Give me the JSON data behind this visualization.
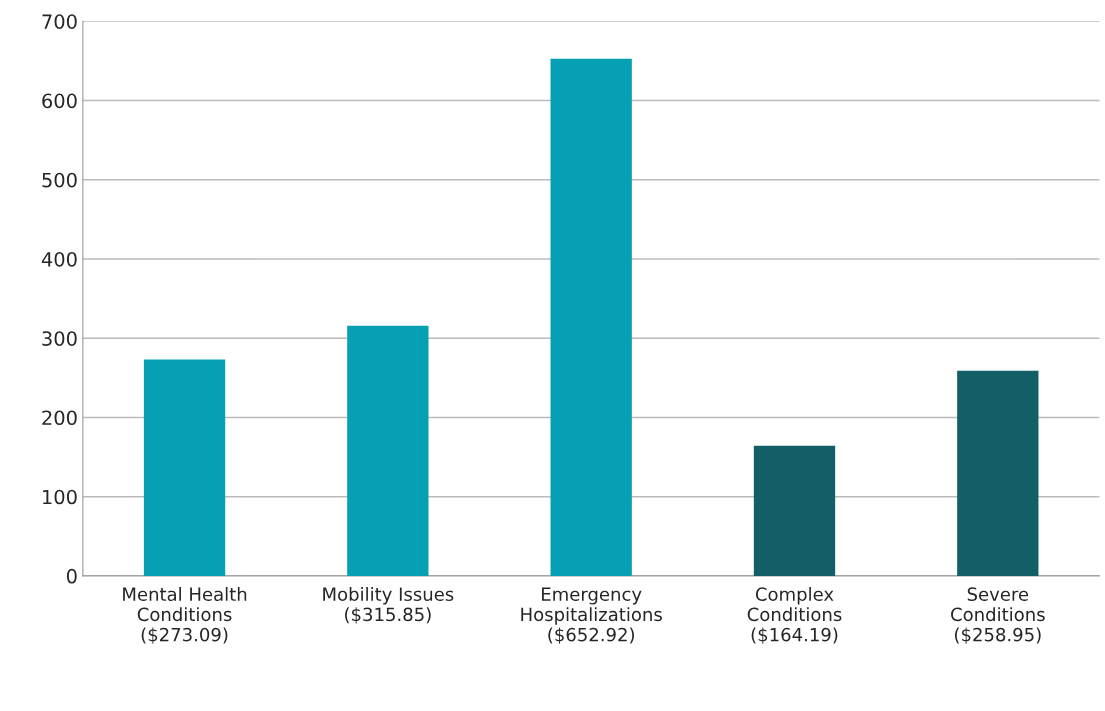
{
  "chart_data": {
    "type": "bar",
    "categories": [
      "Mental Health\nConditions\n($273.09)",
      "Mobility Issues\n($315.85)",
      "Emergency\nHospitalizations\n($652.92)",
      "Complex\nConditions\n($164.19)",
      "Severe\nConditions\n($258.95)"
    ],
    "values": [
      273.09,
      315.85,
      652.92,
      164.19,
      258.95
    ],
    "colors": [
      "#05a0b4",
      "#05a0b4",
      "#05a0b4",
      "#135f68",
      "#135f68"
    ],
    "ylim": [
      0,
      700
    ],
    "yticks": [
      0,
      100,
      200,
      300,
      400,
      500,
      600,
      700
    ],
    "grid": "y"
  }
}
